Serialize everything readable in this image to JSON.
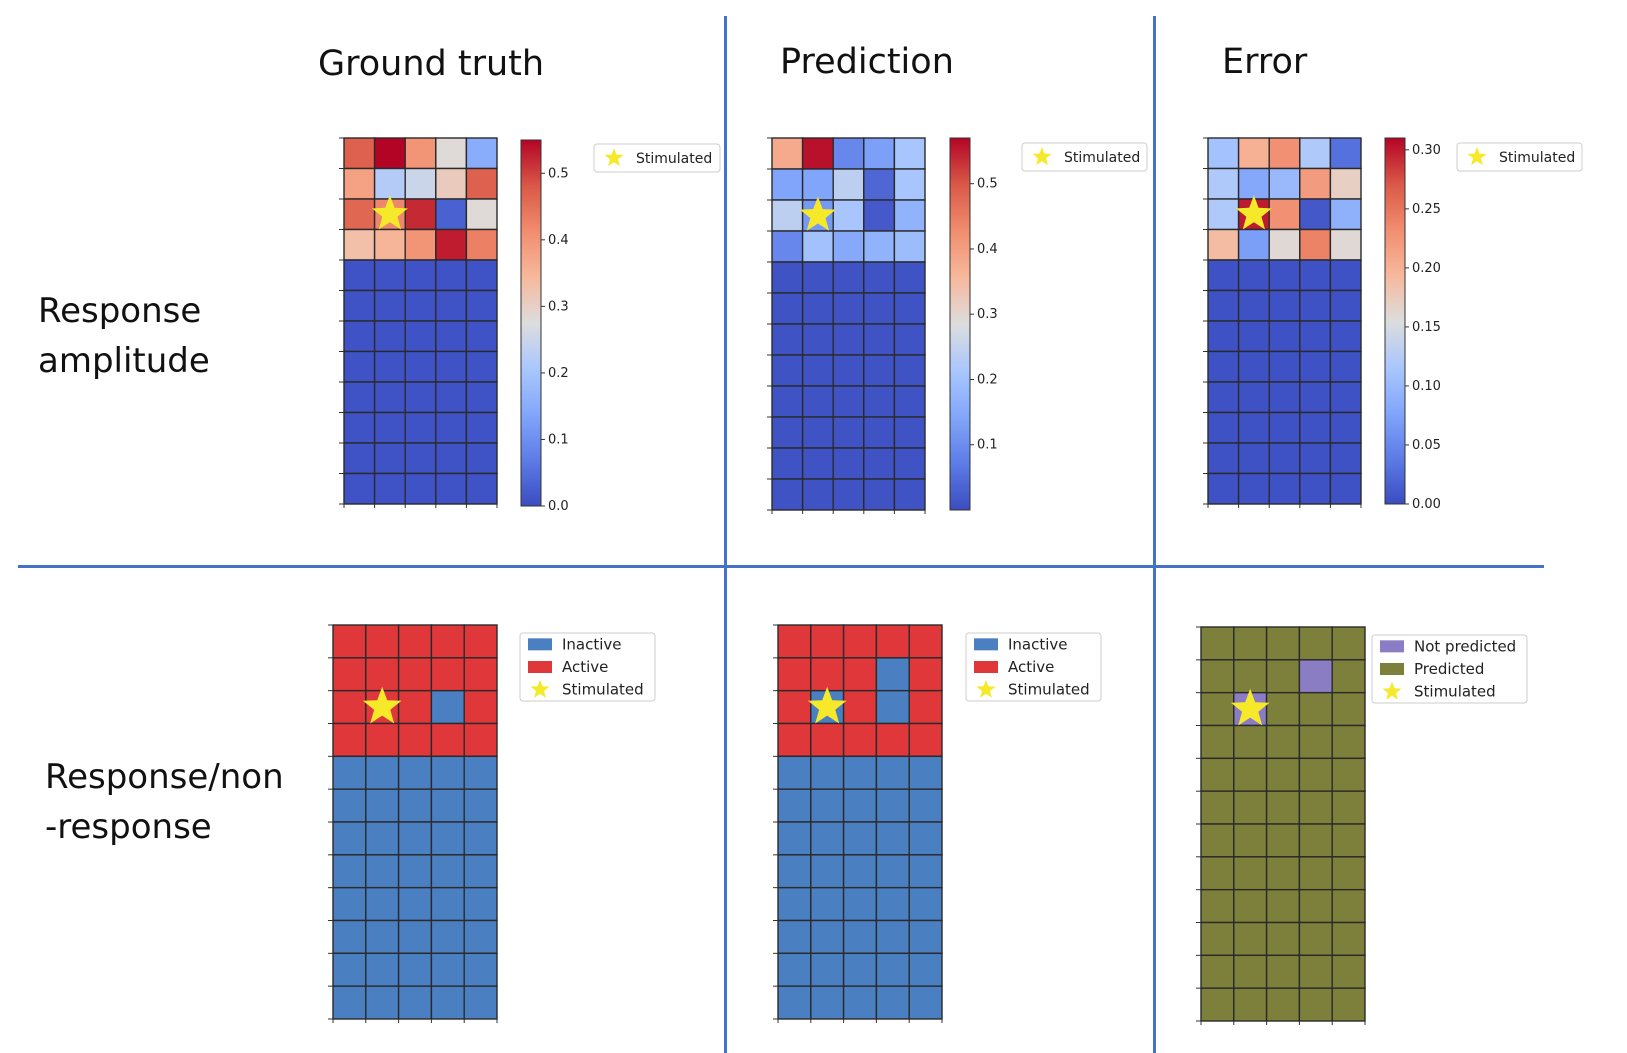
{
  "columns": [
    "Ground truth",
    "Prediction",
    "Error"
  ],
  "rows": {
    "amplitude": [
      "Response",
      "amplitude"
    ],
    "binary": [
      "Response/non",
      "-response"
    ]
  },
  "colors": {
    "divider": "#4472c4",
    "star": "#f5e92a",
    "inactive": "#4a7fc1",
    "active": "#e0373b",
    "predicted": "#7d803b",
    "not_predicted": "#8b7dc3",
    "grid_line": "#2a2a2a"
  },
  "chart_data": [
    {
      "id": "gt-amp",
      "type": "heatmap",
      "cmap": "coolwarm",
      "vmin": 0.0,
      "vmax": 0.55,
      "colorbar_ticks": [
        "0.0",
        "0.1",
        "0.2",
        "0.3",
        "0.4",
        "0.5"
      ],
      "colorbar_tick_values": [
        0.0,
        0.1,
        0.2,
        0.3,
        0.4,
        0.5
      ],
      "stimulated": [
        2,
        1
      ],
      "legend": [
        "Stimulated"
      ],
      "values": [
        [
          0.47,
          0.55,
          0.4,
          0.28,
          0.15
        ],
        [
          0.38,
          0.22,
          0.25,
          0.31,
          0.47
        ],
        [
          0.46,
          0.42,
          0.52,
          0.03,
          0.28
        ],
        [
          0.33,
          0.35,
          0.4,
          0.53,
          0.43
        ],
        [
          0.01,
          0.01,
          0.01,
          0.01,
          0.01
        ],
        [
          0.01,
          0.01,
          0.01,
          0.01,
          0.01
        ],
        [
          0.01,
          0.01,
          0.01,
          0.01,
          0.01
        ],
        [
          0.01,
          0.01,
          0.01,
          0.01,
          0.01
        ],
        [
          0.01,
          0.01,
          0.01,
          0.01,
          0.01
        ],
        [
          0.01,
          0.01,
          0.01,
          0.01,
          0.01
        ],
        [
          0.01,
          0.01,
          0.01,
          0.01,
          0.01
        ],
        [
          0.01,
          0.01,
          0.01,
          0.01,
          0.01
        ]
      ]
    },
    {
      "id": "pred-amp",
      "type": "heatmap",
      "cmap": "coolwarm",
      "vmin": 0.0,
      "vmax": 0.57,
      "colorbar_ticks": [
        "0.1",
        "0.2",
        "0.3",
        "0.4",
        "0.5"
      ],
      "colorbar_tick_values": [
        0.1,
        0.2,
        0.3,
        0.4,
        0.5
      ],
      "stimulated": [
        2,
        1
      ],
      "legend": [
        "Stimulated"
      ],
      "values": [
        [
          0.38,
          0.56,
          0.09,
          0.13,
          0.21
        ],
        [
          0.14,
          0.14,
          0.24,
          0.04,
          0.21
        ],
        [
          0.24,
          0.12,
          0.21,
          0.02,
          0.17
        ],
        [
          0.09,
          0.2,
          0.15,
          0.17,
          0.19
        ],
        [
          0.01,
          0.01,
          0.01,
          0.01,
          0.01
        ],
        [
          0.01,
          0.01,
          0.01,
          0.01,
          0.01
        ],
        [
          0.01,
          0.01,
          0.01,
          0.01,
          0.01
        ],
        [
          0.01,
          0.01,
          0.01,
          0.01,
          0.01
        ],
        [
          0.01,
          0.01,
          0.01,
          0.01,
          0.01
        ],
        [
          0.01,
          0.01,
          0.01,
          0.01,
          0.01
        ],
        [
          0.01,
          0.01,
          0.01,
          0.01,
          0.01
        ],
        [
          0.01,
          0.01,
          0.01,
          0.01,
          0.01
        ]
      ]
    },
    {
      "id": "err-amp",
      "type": "heatmap",
      "cmap": "coolwarm",
      "vmin": 0.0,
      "vmax": 0.31,
      "colorbar_ticks": [
        "0.00",
        "0.05",
        "0.10",
        "0.15",
        "0.20",
        "0.25",
        "0.30"
      ],
      "colorbar_tick_values": [
        0.0,
        0.05,
        0.1,
        0.15,
        0.2,
        0.25,
        0.3
      ],
      "stimulated": [
        2,
        1
      ],
      "legend": [
        "Stimulated"
      ],
      "values": [
        [
          0.11,
          0.2,
          0.23,
          0.12,
          0.03
        ],
        [
          0.12,
          0.08,
          0.1,
          0.22,
          0.17
        ],
        [
          0.12,
          0.3,
          0.23,
          0.01,
          0.09
        ],
        [
          0.19,
          0.07,
          0.16,
          0.24,
          0.16
        ],
        [
          0.005,
          0.005,
          0.005,
          0.005,
          0.005
        ],
        [
          0.005,
          0.005,
          0.005,
          0.005,
          0.005
        ],
        [
          0.005,
          0.005,
          0.005,
          0.005,
          0.005
        ],
        [
          0.005,
          0.005,
          0.005,
          0.005,
          0.005
        ],
        [
          0.005,
          0.005,
          0.005,
          0.005,
          0.005
        ],
        [
          0.005,
          0.005,
          0.005,
          0.005,
          0.005
        ],
        [
          0.005,
          0.005,
          0.005,
          0.005,
          0.005
        ],
        [
          0.005,
          0.005,
          0.005,
          0.005,
          0.005
        ]
      ]
    },
    {
      "id": "gt-bin",
      "type": "heatmap",
      "cmap": "categorical",
      "classes": [
        "Inactive",
        "Active"
      ],
      "class_colors": [
        "#4a7fc1",
        "#e0373b"
      ],
      "stimulated": [
        2,
        1
      ],
      "legend": [
        "Inactive",
        "Active",
        "Stimulated"
      ],
      "values": [
        [
          1,
          1,
          1,
          1,
          1
        ],
        [
          1,
          1,
          1,
          1,
          1
        ],
        [
          1,
          1,
          1,
          0,
          1
        ],
        [
          1,
          1,
          1,
          1,
          1
        ],
        [
          0,
          0,
          0,
          0,
          0
        ],
        [
          0,
          0,
          0,
          0,
          0
        ],
        [
          0,
          0,
          0,
          0,
          0
        ],
        [
          0,
          0,
          0,
          0,
          0
        ],
        [
          0,
          0,
          0,
          0,
          0
        ],
        [
          0,
          0,
          0,
          0,
          0
        ],
        [
          0,
          0,
          0,
          0,
          0
        ],
        [
          0,
          0,
          0,
          0,
          0
        ]
      ]
    },
    {
      "id": "pred-bin",
      "type": "heatmap",
      "cmap": "categorical",
      "classes": [
        "Inactive",
        "Active"
      ],
      "class_colors": [
        "#4a7fc1",
        "#e0373b"
      ],
      "stimulated": [
        2,
        1
      ],
      "legend": [
        "Inactive",
        "Active",
        "Stimulated"
      ],
      "values": [
        [
          1,
          1,
          1,
          1,
          1
        ],
        [
          1,
          1,
          1,
          0,
          1
        ],
        [
          1,
          0,
          1,
          0,
          1
        ],
        [
          1,
          1,
          1,
          1,
          1
        ],
        [
          0,
          0,
          0,
          0,
          0
        ],
        [
          0,
          0,
          0,
          0,
          0
        ],
        [
          0,
          0,
          0,
          0,
          0
        ],
        [
          0,
          0,
          0,
          0,
          0
        ],
        [
          0,
          0,
          0,
          0,
          0
        ],
        [
          0,
          0,
          0,
          0,
          0
        ],
        [
          0,
          0,
          0,
          0,
          0
        ],
        [
          0,
          0,
          0,
          0,
          0
        ]
      ]
    },
    {
      "id": "err-bin",
      "type": "heatmap",
      "cmap": "categorical",
      "classes": [
        "Not predicted",
        "Predicted"
      ],
      "class_colors": [
        "#8b7dc3",
        "#7d803b"
      ],
      "stimulated": [
        2,
        1
      ],
      "legend": [
        "Not predicted",
        "Predicted",
        "Stimulated"
      ],
      "values": [
        [
          1,
          1,
          1,
          1,
          1
        ],
        [
          1,
          1,
          1,
          0,
          1
        ],
        [
          1,
          0,
          1,
          1,
          1
        ],
        [
          1,
          1,
          1,
          1,
          1
        ],
        [
          1,
          1,
          1,
          1,
          1
        ],
        [
          1,
          1,
          1,
          1,
          1
        ],
        [
          1,
          1,
          1,
          1,
          1
        ],
        [
          1,
          1,
          1,
          1,
          1
        ],
        [
          1,
          1,
          1,
          1,
          1
        ],
        [
          1,
          1,
          1,
          1,
          1
        ],
        [
          1,
          1,
          1,
          1,
          1
        ],
        [
          1,
          1,
          1,
          1,
          1
        ]
      ]
    }
  ]
}
